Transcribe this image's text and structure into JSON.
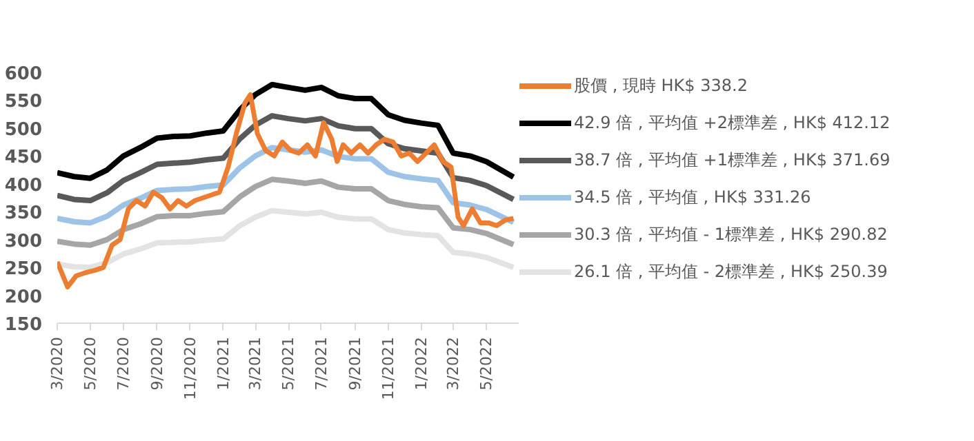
{
  "chart_data": {
    "type": "line",
    "ylim": [
      150,
      600
    ],
    "yticks": [
      150,
      200,
      250,
      300,
      350,
      400,
      450,
      500,
      550,
      600
    ],
    "xlim": [
      "2020-03-01",
      "2022-07-01"
    ],
    "xticks": [
      {
        "value": "2020-03-01",
        "label": "3/2020"
      },
      {
        "value": "2020-05-01",
        "label": "5/2020"
      },
      {
        "value": "2020-07-01",
        "label": "7/2020"
      },
      {
        "value": "2020-09-01",
        "label": "9/2020"
      },
      {
        "value": "2020-11-01",
        "label": "11/2020"
      },
      {
        "value": "2021-01-01",
        "label": "1/2021"
      },
      {
        "value": "2021-03-01",
        "label": "3/2021"
      },
      {
        "value": "2021-05-01",
        "label": "5/2021"
      },
      {
        "value": "2021-07-01",
        "label": "7/2021"
      },
      {
        "value": "2021-09-01",
        "label": "9/2021"
      },
      {
        "value": "2021-11-01",
        "label": "11/2021"
      },
      {
        "value": "2022-01-01",
        "label": "1/2022"
      },
      {
        "value": "2022-03-01",
        "label": "3/2022"
      },
      {
        "value": "2022-05-01",
        "label": "5/2022"
      }
    ],
    "grid": false,
    "legend": "right",
    "line_style": "solid",
    "marker": "none",
    "series": [
      {
        "name": "股價 , 現時 HK$ 338.2",
        "color": "#ed7d31",
        "x": [
          "2020-03-01",
          "2020-03-20",
          "2020-04-05",
          "2020-04-20",
          "2020-05-10",
          "2020-05-25",
          "2020-06-10",
          "2020-06-25",
          "2020-07-10",
          "2020-07-25",
          "2020-08-10",
          "2020-08-25",
          "2020-09-10",
          "2020-09-25",
          "2020-10-10",
          "2020-10-25",
          "2020-11-10",
          "2020-11-25",
          "2020-12-10",
          "2020-12-25",
          "2021-01-10",
          "2021-01-25",
          "2021-02-10",
          "2021-02-20",
          "2021-03-05",
          "2021-03-20",
          "2021-04-05",
          "2021-04-20",
          "2021-05-05",
          "2021-05-20",
          "2021-06-05",
          "2021-06-20",
          "2021-07-05",
          "2021-07-20",
          "2021-07-30",
          "2021-08-10",
          "2021-08-25",
          "2021-09-10",
          "2021-09-25",
          "2021-10-10",
          "2021-10-25",
          "2021-11-10",
          "2021-11-25",
          "2021-12-10",
          "2021-12-25",
          "2022-01-10",
          "2022-01-25",
          "2022-02-10",
          "2022-02-25",
          "2022-03-10",
          "2022-03-20",
          "2022-04-05",
          "2022-04-20",
          "2022-05-05",
          "2022-05-20",
          "2022-06-05",
          "2022-06-20"
        ],
        "values": [
          260,
          215,
          235,
          240,
          245,
          250,
          290,
          300,
          355,
          370,
          360,
          385,
          375,
          355,
          370,
          360,
          370,
          375,
          380,
          385,
          430,
          490,
          545,
          560,
          490,
          460,
          450,
          475,
          460,
          455,
          470,
          450,
          510,
          480,
          440,
          470,
          455,
          470,
          455,
          470,
          480,
          475,
          450,
          455,
          440,
          455,
          470,
          440,
          430,
          340,
          325,
          355,
          330,
          330,
          325,
          335,
          338
        ]
      },
      {
        "name": "42.9 倍 , 平均值 +2標準差 , HK$ 412.12",
        "color": "#000000",
        "values": [
          420,
          413,
          410,
          425,
          450,
          465,
          482,
          485,
          486,
          491,
          495,
          533,
          560,
          578,
          573,
          568,
          573,
          558,
          553,
          553,
          524,
          514,
          509,
          505,
          455,
          450,
          440,
          412
        ]
      },
      {
        "name": "38.7 倍 , 平均值 +1標準差 , HK$ 371.69",
        "color": "#595959",
        "values": [
          379,
          372,
          370,
          384,
          406,
          420,
          435,
          437,
          439,
          443,
          446,
          481,
          505,
          522,
          517,
          513,
          517,
          504,
          499,
          499,
          472,
          463,
          459,
          455,
          411,
          406,
          397,
          372
        ]
      },
      {
        "name": "34.5 倍 , 平均值 , HK$ 331.26",
        "color": "#9dc3e6",
        "values": [
          338,
          332,
          330,
          342,
          362,
          374,
          388,
          390,
          391,
          395,
          398,
          429,
          450,
          465,
          461,
          457,
          461,
          449,
          445,
          445,
          421,
          413,
          409,
          406,
          366,
          362,
          354,
          331
        ]
      },
      {
        "name": "30.3 倍 , 平均值 - 1標準差 , HK$ 290.82",
        "color": "#a6a6a6",
        "values": [
          297,
          292,
          290,
          300,
          318,
          328,
          341,
          343,
          343,
          347,
          350,
          377,
          395,
          408,
          405,
          401,
          405,
          394,
          391,
          391,
          370,
          363,
          359,
          357,
          321,
          318,
          311,
          291
        ]
      },
      {
        "name": "26.1 倍 , 平均值 - 2標準差 , HK$ 250.39",
        "color": "#e3e3e3",
        "values": [
          256,
          251,
          250,
          259,
          274,
          283,
          294,
          295,
          296,
          299,
          301,
          325,
          340,
          352,
          349,
          346,
          349,
          340,
          337,
          337,
          318,
          312,
          309,
          307,
          277,
          274,
          268,
          250
        ]
      }
    ],
    "x": [
      "2020-03-01",
      "2020-04-01",
      "2020-05-01",
      "2020-06-01",
      "2020-07-01",
      "2020-08-01",
      "2020-09-01",
      "2020-10-01",
      "2020-11-01",
      "2020-12-01",
      "2021-01-01",
      "2021-02-01",
      "2021-03-01",
      "2021-04-01",
      "2021-05-01",
      "2021-06-01",
      "2021-07-01",
      "2021-08-01",
      "2021-09-01",
      "2021-10-01",
      "2021-11-01",
      "2021-12-01",
      "2022-01-01",
      "2022-02-01",
      "2022-03-01",
      "2022-04-01",
      "2022-05-01",
      "2022-06-20"
    ]
  }
}
